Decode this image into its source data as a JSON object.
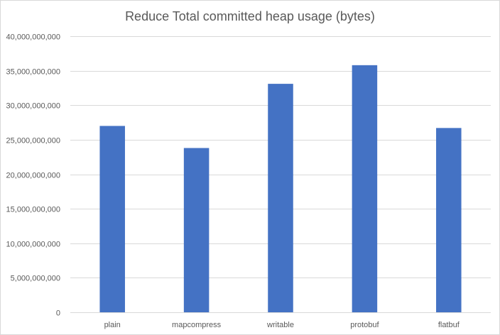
{
  "chart_data": {
    "type": "bar",
    "title": "Reduce Total committed heap usage (bytes)",
    "categories": [
      "plain",
      "mapcompress",
      "writable",
      "protobuf",
      "flatbuf"
    ],
    "values": [
      27000000000,
      23800000000,
      33100000000,
      35800000000,
      26700000000
    ],
    "ylim": [
      0,
      40000000000
    ],
    "y_ticks": [
      0,
      5000000000,
      10000000000,
      15000000000,
      20000000000,
      25000000000,
      30000000000,
      35000000000,
      40000000000
    ],
    "y_tick_labels": [
      "0",
      "5,000,000,000",
      "10,000,000,000",
      "15,000,000,000",
      "20,000,000,000",
      "25,000,000,000",
      "30,000,000,000",
      "35,000,000,000",
      "40,000,000,000"
    ],
    "grid": true,
    "legend": "none",
    "bar_color": "#4472C4",
    "grid_color": "#d9d9d9",
    "text_color": "#595959"
  }
}
